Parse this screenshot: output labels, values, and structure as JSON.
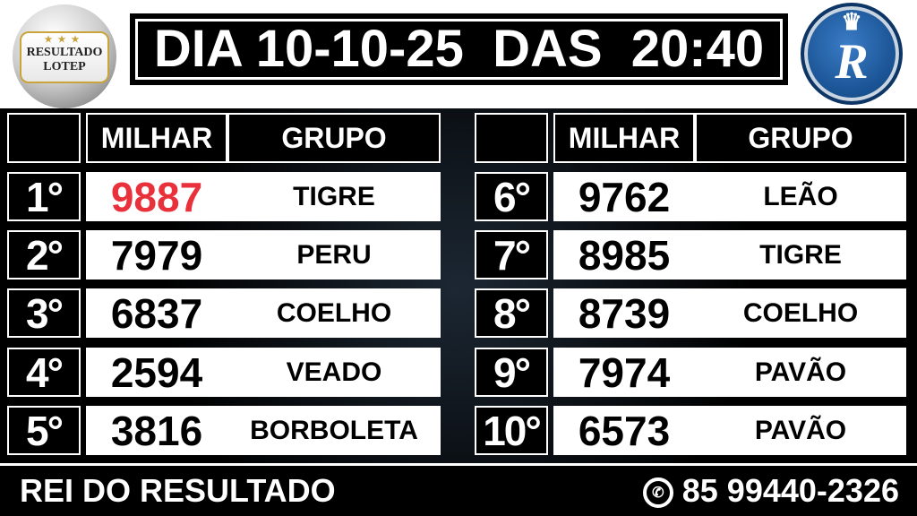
{
  "logo_left": {
    "text1": "RESULTADO",
    "text2": "LOTEP",
    "stars": "★★★"
  },
  "header": {
    "title": "DIA 10-10-25  DAS  20:40"
  },
  "logo_right": {
    "text": "Rei",
    "letter": "R"
  },
  "table": {
    "col_milhar": "MILHAR",
    "col_grupo": "GRUPO",
    "rows": [
      {
        "pos": "1°",
        "milhar": "9887",
        "grupo": "TIGRE"
      },
      {
        "pos": "2°",
        "milhar": "7979",
        "grupo": "PERU"
      },
      {
        "pos": "3°",
        "milhar": "6837",
        "grupo": "COELHO"
      },
      {
        "pos": "4°",
        "milhar": "2594",
        "grupo": "VEADO"
      },
      {
        "pos": "5°",
        "milhar": "3816",
        "grupo": "BORBOLETA"
      },
      {
        "pos": "6°",
        "milhar": "9762",
        "grupo": "LEÃO"
      },
      {
        "pos": "7°",
        "milhar": "8985",
        "grupo": "TIGRE"
      },
      {
        "pos": "8°",
        "milhar": "8739",
        "grupo": "COELHO"
      },
      {
        "pos": "9°",
        "milhar": "7974",
        "grupo": "PAVÃO"
      },
      {
        "pos": "10°",
        "milhar": "6573",
        "grupo": "PAVÃO"
      }
    ]
  },
  "colors": {
    "highlight": "#e8313a",
    "logo_blue": "#174f8f"
  },
  "footer": {
    "brand": "REI DO RESULTADO",
    "phone": "85 99440-2326",
    "icon": "whatsapp-icon"
  }
}
